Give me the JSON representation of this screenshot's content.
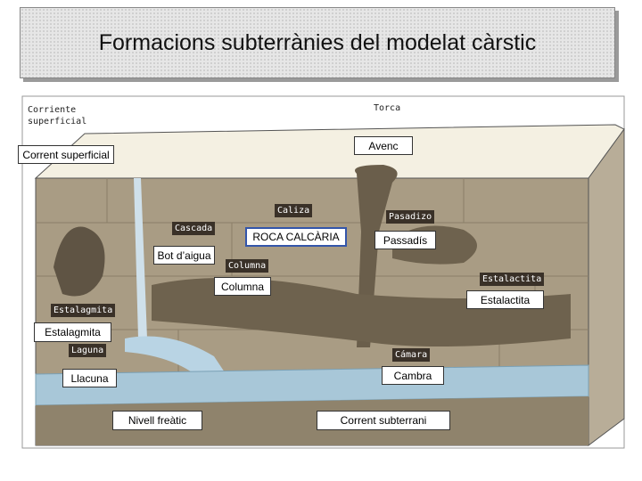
{
  "title": "Formacions subterrànies del modelat càrstic",
  "labels": [
    "Avenc",
    "Corrent superficial",
    "ROCA CALCÀRIA",
    "Passadís",
    "Bot d’aigua",
    "Columna",
    "Estalactita",
    "Estalagmita",
    "Llacuna",
    "Cambra",
    "Nivell freàtic",
    "Corrent subterrani"
  ],
  "image_labels": [
    "Corriente superficial",
    "Torca",
    "Caliza",
    "Cascada",
    "Pasadizo",
    "Columna",
    "Estalactita",
    "Estalagmita",
    "Laguna",
    "Cámara"
  ]
}
